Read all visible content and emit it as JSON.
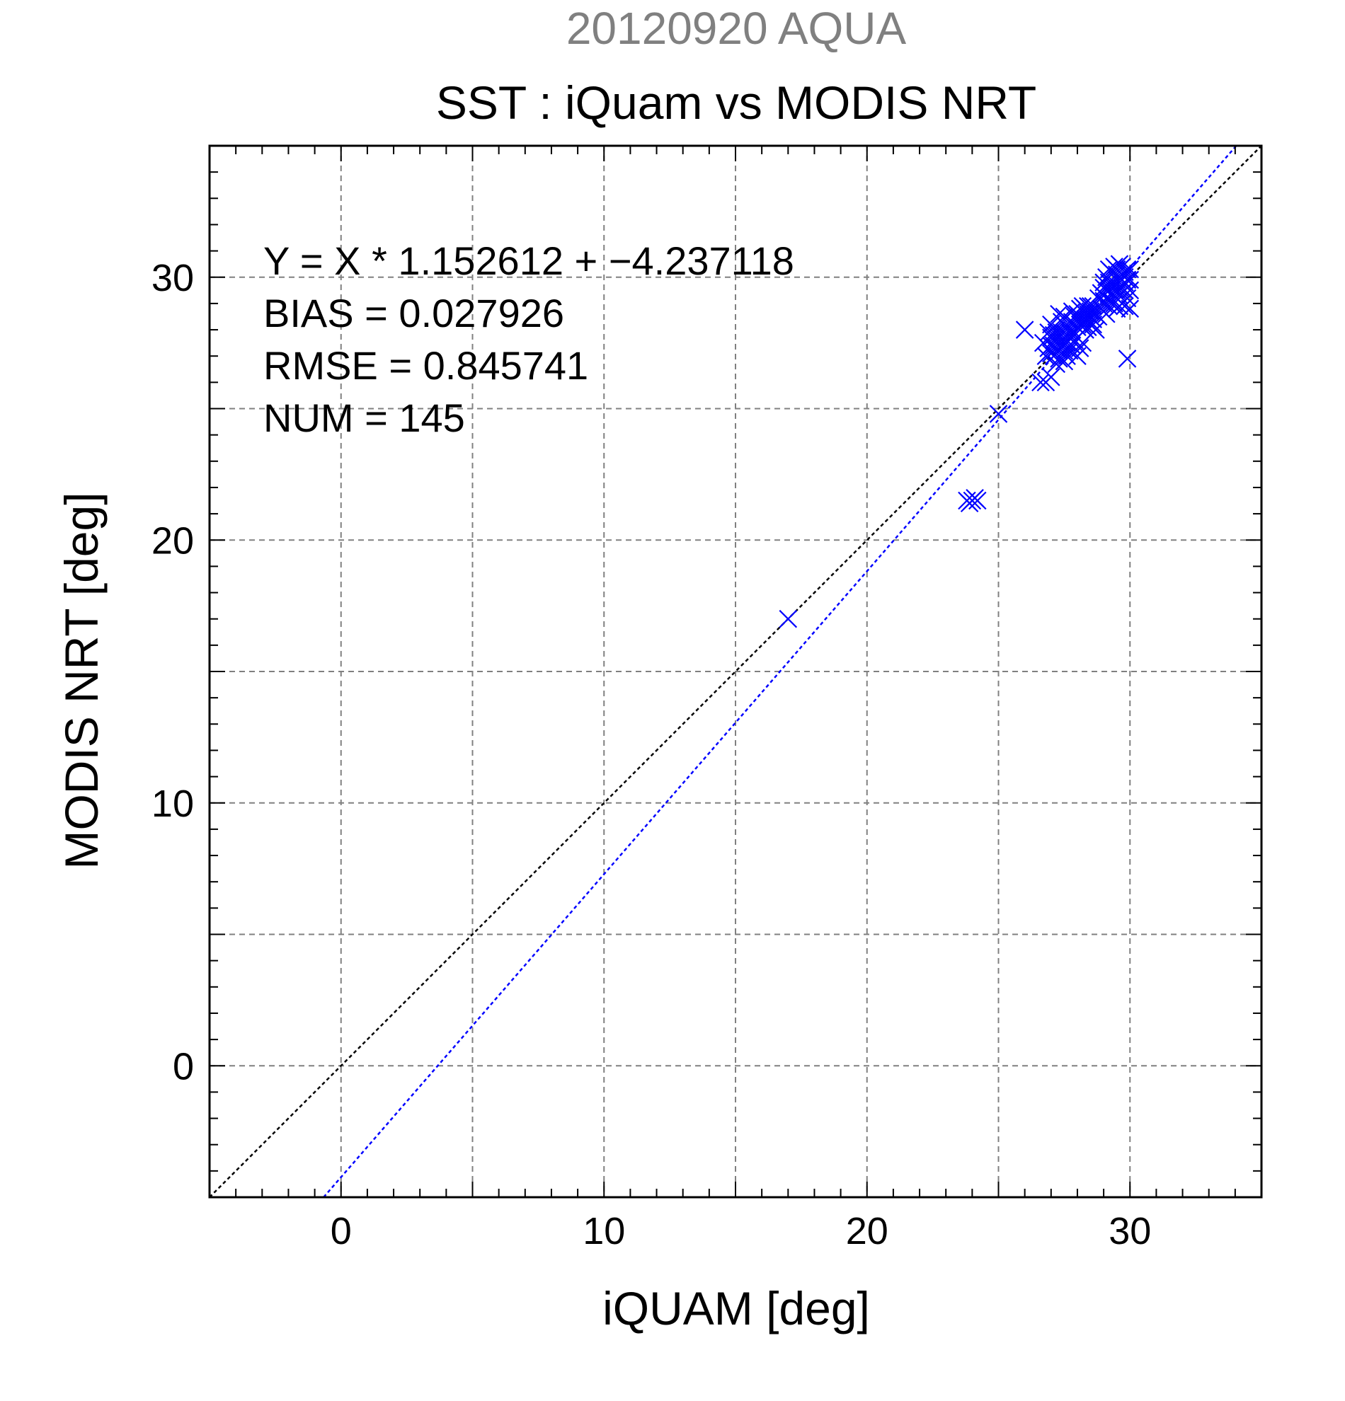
{
  "chart_data": {
    "type": "scatter",
    "header": "20120920 AQUA",
    "title": "SST : iQuam vs MODIS NRT",
    "xlabel": "iQUAM [deg]",
    "ylabel": "MODIS NRT [deg]",
    "xlim": [
      -5,
      35
    ],
    "ylim": [
      -5,
      35
    ],
    "xticks": [
      0,
      10,
      20,
      30
    ],
    "yticks": [
      0,
      10,
      20,
      30
    ],
    "grid": true,
    "stats": {
      "equation": "Y = X * 1.152612 + −4.237118",
      "bias": "BIAS = 0.027926",
      "rmse": "RMSE = 0.845741",
      "num": "NUM = 145"
    },
    "lines": [
      {
        "role": "identity",
        "slope": 1.0,
        "intercept": 0.0,
        "color": "#000000"
      },
      {
        "role": "regression-fit",
        "slope": 1.152612,
        "intercept": -4.237118,
        "color": "#0000ff"
      }
    ],
    "series": [
      {
        "marker": "x",
        "color": "#0000ff",
        "points": [
          [
            17.0,
            17.0
          ],
          [
            25.0,
            24.8
          ],
          [
            23.8,
            21.5
          ],
          [
            24.0,
            21.5
          ],
          [
            24.1,
            21.6
          ],
          [
            24.2,
            21.5
          ],
          [
            23.9,
            21.4
          ],
          [
            26.0,
            28.0
          ],
          [
            26.6,
            26.0
          ],
          [
            26.8,
            26.0
          ],
          [
            27.0,
            26.2
          ],
          [
            26.7,
            27.5
          ],
          [
            26.9,
            27.3
          ],
          [
            27.0,
            27.7
          ],
          [
            27.1,
            27.4
          ],
          [
            27.2,
            27.8
          ],
          [
            27.3,
            27.2
          ],
          [
            27.4,
            27.6
          ],
          [
            27.0,
            28.2
          ],
          [
            27.2,
            28.0
          ],
          [
            27.5,
            27.9
          ],
          [
            26.8,
            27.0
          ],
          [
            27.1,
            27.0
          ],
          [
            27.3,
            26.9
          ],
          [
            27.6,
            27.3
          ],
          [
            27.4,
            28.3
          ],
          [
            27.6,
            27.8
          ],
          [
            27.7,
            27.2
          ],
          [
            27.5,
            28.5
          ],
          [
            27.8,
            28.0
          ],
          [
            27.9,
            27.6
          ],
          [
            27.2,
            26.7
          ],
          [
            27.5,
            26.8
          ],
          [
            27.0,
            27.1
          ],
          [
            26.9,
            27.9
          ],
          [
            27.3,
            28.6
          ],
          [
            27.8,
            28.7
          ],
          [
            28.0,
            28.4
          ],
          [
            28.1,
            28.8
          ],
          [
            28.2,
            28.2
          ],
          [
            28.3,
            28.6
          ],
          [
            28.4,
            28.3
          ],
          [
            28.5,
            28.7
          ],
          [
            28.1,
            27.3
          ],
          [
            28.0,
            27.0
          ],
          [
            28.2,
            27.5
          ],
          [
            28.6,
            28.4
          ],
          [
            28.7,
            28.0
          ],
          [
            28.8,
            28.5
          ],
          [
            28.4,
            28.9
          ],
          [
            28.6,
            28.2
          ],
          [
            27.9,
            28.5
          ],
          [
            28.3,
            28.0
          ],
          [
            28.5,
            28.2
          ],
          [
            28.2,
            28.9
          ],
          [
            27.7,
            28.3
          ],
          [
            28.9,
            29.4
          ],
          [
            29.0,
            29.6
          ],
          [
            29.1,
            29.2
          ],
          [
            29.2,
            29.8
          ],
          [
            29.3,
            30.2
          ],
          [
            29.4,
            29.0
          ],
          [
            29.5,
            29.5
          ],
          [
            29.6,
            30.0
          ],
          [
            29.7,
            30.4
          ],
          [
            29.8,
            29.8
          ],
          [
            29.0,
            29.0
          ],
          [
            29.1,
            30.0
          ],
          [
            29.3,
            29.4
          ],
          [
            29.4,
            30.4
          ],
          [
            29.5,
            30.1
          ],
          [
            29.6,
            29.3
          ],
          [
            29.7,
            29.6
          ],
          [
            29.8,
            30.2
          ],
          [
            29.9,
            29.9
          ],
          [
            30.0,
            29.5
          ],
          [
            30.0,
            30.3
          ],
          [
            29.9,
            29.2
          ],
          [
            29.8,
            28.9
          ],
          [
            30.0,
            28.8
          ],
          [
            29.7,
            29.0
          ],
          [
            29.5,
            28.8
          ],
          [
            29.2,
            28.9
          ],
          [
            29.3,
            29.1
          ],
          [
            29.6,
            28.9
          ],
          [
            29.9,
            26.9
          ],
          [
            28.8,
            29.2
          ],
          [
            28.9,
            28.8
          ],
          [
            29.0,
            29.3
          ],
          [
            29.1,
            28.6
          ],
          [
            29.4,
            29.7
          ],
          [
            29.6,
            30.5
          ],
          [
            29.8,
            30.0
          ],
          [
            29.2,
            30.3
          ],
          [
            29.5,
            30.3
          ],
          [
            30.0,
            29.9
          ],
          [
            27.4,
            27.4
          ],
          [
            27.6,
            27.5
          ],
          [
            27.8,
            27.4
          ],
          [
            27.3,
            27.8
          ],
          [
            27.5,
            27.2
          ],
          [
            27.1,
            27.6
          ],
          [
            27.7,
            27.7
          ],
          [
            28.0,
            28.1
          ],
          [
            28.4,
            28.6
          ],
          [
            28.6,
            28.7
          ],
          [
            27.9,
            28.2
          ],
          [
            27.2,
            27.3
          ],
          [
            27.4,
            27.9
          ],
          [
            27.6,
            28.1
          ],
          [
            27.0,
            27.4
          ],
          [
            28.1,
            28.5
          ],
          [
            28.3,
            28.4
          ],
          [
            28.5,
            28.5
          ],
          [
            28.7,
            28.6
          ],
          [
            27.8,
            27.9
          ],
          [
            28.0,
            28.6
          ],
          [
            28.2,
            28.4
          ],
          [
            27.9,
            27.8
          ],
          [
            28.4,
            28.1
          ],
          [
            28.6,
            28.9
          ],
          [
            29.1,
            29.5
          ],
          [
            29.3,
            29.8
          ],
          [
            29.5,
            29.7
          ],
          [
            29.7,
            30.1
          ],
          [
            29.9,
            30.3
          ],
          [
            29.0,
            29.8
          ],
          [
            29.2,
            29.5
          ],
          [
            29.4,
            29.3
          ],
          [
            29.6,
            29.6
          ],
          [
            29.8,
            29.5
          ],
          [
            27.5,
            27.5
          ],
          [
            27.7,
            27.9
          ],
          [
            27.3,
            27.5
          ],
          [
            28.1,
            28.2
          ],
          [
            28.3,
            28.8
          ],
          [
            27.1,
            27.8
          ],
          [
            27.6,
            27.0
          ],
          [
            28.4,
            28.4
          ],
          [
            29.0,
            29.1
          ],
          [
            29.3,
            29.6
          ],
          [
            27.2,
            27.9
          ],
          [
            27.8,
            28.3
          ],
          [
            28.5,
            28.9
          ],
          [
            29.5,
            29.9
          ]
        ]
      }
    ]
  }
}
